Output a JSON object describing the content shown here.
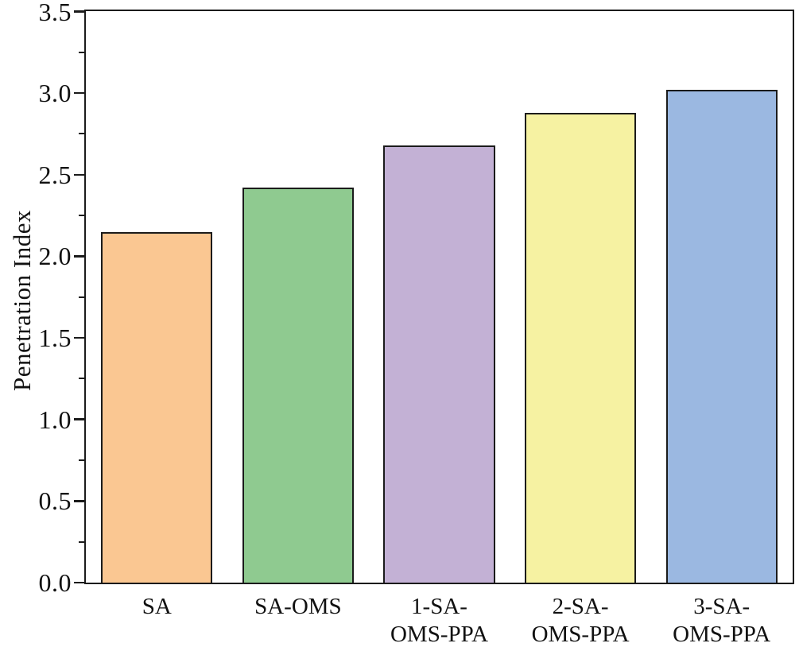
{
  "chart_data": {
    "type": "bar",
    "title": "",
    "xlabel": "",
    "ylabel": "Penetration Index",
    "categories": [
      "SA",
      "SA-OMS",
      "1-SA-OMS-PPA",
      "2-SA-OMS-PPA",
      "3-SA-OMS-PPA"
    ],
    "x_tick_label_lines": [
      [
        "SA"
      ],
      [
        "SA-OMS"
      ],
      [
        "1-SA-",
        "OMS-PPA"
      ],
      [
        "2-SA-",
        "OMS-PPA"
      ],
      [
        "3-SA-",
        "OMS-PPA"
      ]
    ],
    "values": [
      2.15,
      2.42,
      2.68,
      2.88,
      3.02
    ],
    "bar_colors": [
      "#FAC792",
      "#8FCA90",
      "#C3B1D5",
      "#F6F2A2",
      "#9BB8E1"
    ],
    "bar_edge_color": "#1b1b1b",
    "axis_color": "#1b1b1b",
    "text_color": "#111111",
    "background_color": "#ffffff",
    "ylim": [
      0,
      3.5
    ],
    "y_major_step": 0.5,
    "y_minor_step": 0.25,
    "y_tick_labels": [
      "0.0",
      "0.5",
      "1.0",
      "1.5",
      "2.0",
      "2.5",
      "3.0",
      "3.5"
    ],
    "bar_width_fraction": 0.79,
    "grid": false,
    "legend": null
  }
}
